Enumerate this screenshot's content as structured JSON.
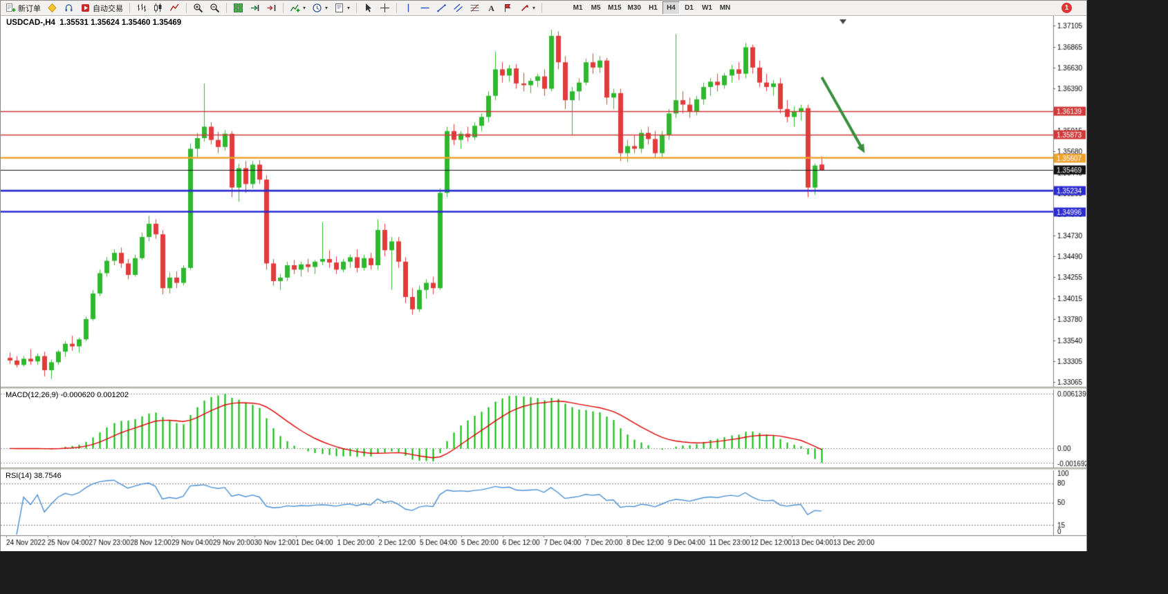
{
  "app": {
    "desktop_bg": "#1d1d1d",
    "window_bg": "#ffffff",
    "toolbar_bg": "#f2f1ef"
  },
  "toolbar": {
    "new_order_label": "新订单",
    "autotrading_label": "自动交易",
    "text_tool_glyph": "A",
    "notification_count": "1",
    "timeframes": [
      {
        "label": "M1",
        "active": false
      },
      {
        "label": "M5",
        "active": false
      },
      {
        "label": "M15",
        "active": false
      },
      {
        "label": "M30",
        "active": false
      },
      {
        "label": "H1",
        "active": false
      },
      {
        "label": "H4",
        "active": true
      },
      {
        "label": "D1",
        "active": false
      },
      {
        "label": "W1",
        "active": false
      },
      {
        "label": "MN",
        "active": false
      }
    ]
  },
  "chart": {
    "title_text": "USDCAD-,H4  1.35531 1.35624 1.35460 1.35469",
    "macd_label": "MACD(12,26,9) -0.000620 0.001202",
    "rsi_label": "RSI(14) 38.7546"
  },
  "icons": [
    "new-order-icon",
    "metaeditor-icon",
    "headset-icon",
    "autotrading-icon",
    "bars-chart-icon",
    "candlestick-chart-icon",
    "line-chart-icon",
    "zoom-in-icon",
    "zoom-out-icon",
    "tile-windows-icon",
    "auto-scroll-icon",
    "chart-shift-icon",
    "indicators-icon",
    "periods-icon",
    "templates-icon",
    "cursor-icon",
    "crosshair-icon",
    "vertical-line-icon",
    "horizontal-line-icon",
    "trendline-icon",
    "channel-icon",
    "fibonacci-icon",
    "text-icon",
    "text-label-icon",
    "arrows-icon",
    "notification-badge",
    "chart-shift-marker",
    "down-arrow-annotation"
  ],
  "chart_data": {
    "type": "candlestick",
    "symbol": "USDCAD-",
    "period": "H4",
    "ohlc": {
      "open": "1.35531",
      "high": "1.35624",
      "low": "1.35460",
      "close": "1.35469"
    },
    "current_price": "1.35469",
    "y_axis": {
      "min": 1.3302,
      "max": 1.372,
      "ticks": [
        "1.37105",
        "1.36865",
        "1.36630",
        "1.36390",
        "1.36155",
        "1.35915",
        "1.35680",
        "1.35440",
        "1.35205",
        "1.34970",
        "1.34730",
        "1.34490",
        "1.34255",
        "1.34015",
        "1.33780",
        "1.33540",
        "1.33305",
        "1.33065"
      ]
    },
    "x_labels": [
      "24 Nov 2022",
      "25 Nov 04:00",
      "27 Nov 23:00",
      "28 Nov 12:00",
      "29 Nov 04:00",
      "29 Nov 20:00",
      "30 Nov 12:00",
      "1 Dec 04:00",
      "1 Dec 20:00",
      "2 Dec 12:00",
      "5 Dec 04:00",
      "5 Dec 20:00",
      "6 Dec 12:00",
      "7 Dec 04:00",
      "7 Dec 20:00",
      "8 Dec 12:00",
      "9 Dec 04:00",
      "11 Dec 23:00",
      "12 Dec 12:00",
      "13 Dec 04:00",
      "13 Dec 20:00"
    ],
    "hlines": [
      {
        "price": 1.36139,
        "label": "1.36139",
        "color": "#d03a3a",
        "width": 1.4
      },
      {
        "price": 1.35873,
        "label": "1.35873",
        "color": "#d03a3a",
        "width": 1.4
      },
      {
        "price": 1.35607,
        "label": "1.35607",
        "color": "#efa32e",
        "width": 2.6
      },
      {
        "price": 1.35469,
        "label": "1.35469",
        "color": "#111111",
        "width": 1.0
      },
      {
        "price": 1.35234,
        "label": "1.35234",
        "color": "#2b2bd0",
        "width": 2.6
      },
      {
        "price": 1.34996,
        "label": "1.34996",
        "color": "#2b2bd0",
        "width": 2.6
      }
    ],
    "arrow": {
      "x1_frac": 0.779,
      "price1": 1.3652,
      "x2_frac": 0.82,
      "price2": 1.3566,
      "color": "#388e3c",
      "width": 4
    },
    "colors": {
      "up": "#2eb82e",
      "down": "#e13b3b",
      "macd_hist": "#00bb00",
      "macd_signal": "#e00000",
      "rsi": "#4a8fd4",
      "grid": "#9a9a9a",
      "axis_text": "#000000"
    },
    "indicators": {
      "macd": {
        "name": "MACD",
        "params": [
          12,
          26,
          9
        ],
        "label": "MACD(12,26,9)",
        "value": "-0.000620",
        "signal_value": "0.001202",
        "axis_labels": [
          "0.006139",
          "0.00",
          "-0.001692"
        ]
      },
      "rsi": {
        "name": "RSI",
        "period": 14,
        "label": "RSI(14)",
        "value": "38.7546",
        "axis_labels": [
          "100",
          "80",
          "50",
          "15",
          "0"
        ],
        "levels": [
          80,
          50,
          15
        ]
      }
    },
    "candles": [
      [
        1.3334,
        1.334,
        1.3327,
        1.3331
      ],
      [
        1.3331,
        1.3336,
        1.3323,
        1.3326
      ],
      [
        1.3326,
        1.3336,
        1.3324,
        1.3333
      ],
      [
        1.3333,
        1.3344,
        1.3326,
        1.333
      ],
      [
        1.333,
        1.3339,
        1.3326,
        1.3336
      ],
      [
        1.3336,
        1.3341,
        1.3313,
        1.332
      ],
      [
        1.332,
        1.3332,
        1.331,
        1.3329
      ],
      [
        1.3329,
        1.3343,
        1.3326,
        1.3341
      ],
      [
        1.3341,
        1.3353,
        1.3335,
        1.335
      ],
      [
        1.335,
        1.3359,
        1.3342,
        1.3347
      ],
      [
        1.3347,
        1.3357,
        1.334,
        1.3355
      ],
      [
        1.3355,
        1.3381,
        1.3353,
        1.3378
      ],
      [
        1.3378,
        1.3411,
        1.3376,
        1.3407
      ],
      [
        1.3407,
        1.3434,
        1.3404,
        1.343
      ],
      [
        1.343,
        1.3448,
        1.3426,
        1.3444
      ],
      [
        1.3444,
        1.3457,
        1.3439,
        1.3453
      ],
      [
        1.3453,
        1.3459,
        1.3436,
        1.3441
      ],
      [
        1.3441,
        1.3446,
        1.3423,
        1.3428
      ],
      [
        1.3428,
        1.3451,
        1.3426,
        1.3447
      ],
      [
        1.3447,
        1.3476,
        1.3445,
        1.3471
      ],
      [
        1.3471,
        1.3495,
        1.3466,
        1.3486
      ],
      [
        1.3486,
        1.3491,
        1.3469,
        1.3474
      ],
      [
        1.3474,
        1.3479,
        1.3406,
        1.3413
      ],
      [
        1.3413,
        1.3431,
        1.3407,
        1.3425
      ],
      [
        1.3425,
        1.3432,
        1.3413,
        1.3419
      ],
      [
        1.3419,
        1.3439,
        1.3416,
        1.3436
      ],
      [
        1.3436,
        1.3577,
        1.3434,
        1.3571
      ],
      [
        1.3571,
        1.3589,
        1.3561,
        1.3583
      ],
      [
        1.3583,
        1.3645,
        1.3579,
        1.3596
      ],
      [
        1.3596,
        1.3601,
        1.3576,
        1.3581
      ],
      [
        1.3581,
        1.359,
        1.3566,
        1.3573
      ],
      [
        1.3573,
        1.3592,
        1.3569,
        1.3588
      ],
      [
        1.3588,
        1.3591,
        1.3516,
        1.3527
      ],
      [
        1.3527,
        1.3554,
        1.3511,
        1.3549
      ],
      [
        1.3549,
        1.3557,
        1.3521,
        1.3531
      ],
      [
        1.3531,
        1.3557,
        1.3526,
        1.3553
      ],
      [
        1.3553,
        1.3558,
        1.3531,
        1.3536
      ],
      [
        1.3536,
        1.3541,
        1.3434,
        1.3441
      ],
      [
        1.3441,
        1.3446,
        1.3416,
        1.3421
      ],
      [
        1.3421,
        1.3429,
        1.3411,
        1.3425
      ],
      [
        1.3425,
        1.3443,
        1.3421,
        1.3439
      ],
      [
        1.3439,
        1.3445,
        1.3429,
        1.3434
      ],
      [
        1.3434,
        1.3443,
        1.3426,
        1.344
      ],
      [
        1.344,
        1.3446,
        1.3431,
        1.3437
      ],
      [
        1.3437,
        1.3445,
        1.3429,
        1.3443
      ],
      [
        1.3443,
        1.3488,
        1.3439,
        1.3446
      ],
      [
        1.3446,
        1.3456,
        1.3436,
        1.3442
      ],
      [
        1.3442,
        1.3449,
        1.3429,
        1.3434
      ],
      [
        1.3434,
        1.3446,
        1.3431,
        1.3443
      ],
      [
        1.3443,
        1.3451,
        1.3436,
        1.3448
      ],
      [
        1.3448,
        1.3457,
        1.3431,
        1.3436
      ],
      [
        1.3436,
        1.3451,
        1.3433,
        1.3447
      ],
      [
        1.3447,
        1.3453,
        1.3434,
        1.3439
      ],
      [
        1.3439,
        1.3491,
        1.3434,
        1.3479
      ],
      [
        1.3479,
        1.3486,
        1.3449,
        1.3456
      ],
      [
        1.3456,
        1.3471,
        1.3411,
        1.3466
      ],
      [
        1.3466,
        1.3471,
        1.3436,
        1.3443
      ],
      [
        1.3443,
        1.3448,
        1.3396,
        1.3403
      ],
      [
        1.3403,
        1.3413,
        1.3383,
        1.3389
      ],
      [
        1.3389,
        1.3416,
        1.3386,
        1.3411
      ],
      [
        1.3411,
        1.3423,
        1.3401,
        1.3419
      ],
      [
        1.3419,
        1.3426,
        1.3406,
        1.3413
      ],
      [
        1.3413,
        1.3526,
        1.3411,
        1.3521
      ],
      [
        1.3521,
        1.3596,
        1.3516,
        1.3591
      ],
      [
        1.3591,
        1.3599,
        1.3575,
        1.3581
      ],
      [
        1.3581,
        1.3591,
        1.3571,
        1.3588
      ],
      [
        1.3588,
        1.3596,
        1.3579,
        1.3584
      ],
      [
        1.3584,
        1.3601,
        1.3581,
        1.3597
      ],
      [
        1.3597,
        1.3611,
        1.3591,
        1.3607
      ],
      [
        1.3607,
        1.3636,
        1.3601,
        1.3631
      ],
      [
        1.3631,
        1.3681,
        1.3626,
        1.3661
      ],
      [
        1.3661,
        1.3669,
        1.3646,
        1.3654
      ],
      [
        1.3654,
        1.3666,
        1.3647,
        1.3662
      ],
      [
        1.3662,
        1.3667,
        1.3639,
        1.3645
      ],
      [
        1.3645,
        1.3657,
        1.3636,
        1.3643
      ],
      [
        1.3643,
        1.3651,
        1.3634,
        1.3648
      ],
      [
        1.3648,
        1.3656,
        1.3641,
        1.3653
      ],
      [
        1.3653,
        1.3661,
        1.3631,
        1.3639
      ],
      [
        1.3639,
        1.3706,
        1.3636,
        1.3699
      ],
      [
        1.3699,
        1.3704,
        1.3661,
        1.3669
      ],
      [
        1.3669,
        1.3676,
        1.3616,
        1.3626
      ],
      [
        1.3626,
        1.3641,
        1.3586,
        1.3636
      ],
      [
        1.3636,
        1.3651,
        1.3626,
        1.3646
      ],
      [
        1.3646,
        1.3673,
        1.3643,
        1.3669
      ],
      [
        1.3669,
        1.3679,
        1.3656,
        1.3663
      ],
      [
        1.3663,
        1.3676,
        1.3657,
        1.3671
      ],
      [
        1.3671,
        1.3674,
        1.3621,
        1.3629
      ],
      [
        1.3629,
        1.3639,
        1.3616,
        1.3634
      ],
      [
        1.3634,
        1.3639,
        1.3557,
        1.3566
      ],
      [
        1.3566,
        1.3581,
        1.3556,
        1.3574
      ],
      [
        1.3574,
        1.3586,
        1.3566,
        1.3571
      ],
      [
        1.3571,
        1.3593,
        1.3566,
        1.3589
      ],
      [
        1.3589,
        1.3596,
        1.3576,
        1.3582
      ],
      [
        1.3582,
        1.3591,
        1.3561,
        1.3566
      ],
      [
        1.3566,
        1.3591,
        1.3561,
        1.3587
      ],
      [
        1.3587,
        1.3616,
        1.3581,
        1.3611
      ],
      [
        1.3611,
        1.3701,
        1.3606,
        1.3626
      ],
      [
        1.3626,
        1.3636,
        1.3611,
        1.3621
      ],
      [
        1.3621,
        1.3629,
        1.3606,
        1.3613
      ],
      [
        1.3613,
        1.3631,
        1.3609,
        1.3627
      ],
      [
        1.3627,
        1.3646,
        1.3621,
        1.3641
      ],
      [
        1.3641,
        1.3651,
        1.3631,
        1.3647
      ],
      [
        1.3647,
        1.3656,
        1.3636,
        1.3643
      ],
      [
        1.3643,
        1.3657,
        1.3639,
        1.3654
      ],
      [
        1.3654,
        1.3666,
        1.3646,
        1.3661
      ],
      [
        1.3661,
        1.3669,
        1.3649,
        1.3656
      ],
      [
        1.3656,
        1.3691,
        1.3651,
        1.3686
      ],
      [
        1.3686,
        1.3689,
        1.3656,
        1.3663
      ],
      [
        1.3663,
        1.3671,
        1.3641,
        1.3646
      ],
      [
        1.3646,
        1.3656,
        1.3636,
        1.3641
      ],
      [
        1.3641,
        1.3649,
        1.3631,
        1.3645
      ],
      [
        1.3645,
        1.3651,
        1.3611,
        1.3616
      ],
      [
        1.3616,
        1.3626,
        1.3601,
        1.3607
      ],
      [
        1.3607,
        1.3619,
        1.3596,
        1.3613
      ],
      [
        1.3613,
        1.3621,
        1.3603,
        1.3617
      ],
      [
        1.3617,
        1.3621,
        1.3516,
        1.3527
      ],
      [
        1.3527,
        1.3554,
        1.3519,
        1.3552
      ],
      [
        1.35531,
        1.35624,
        1.3546,
        1.35469
      ]
    ]
  }
}
